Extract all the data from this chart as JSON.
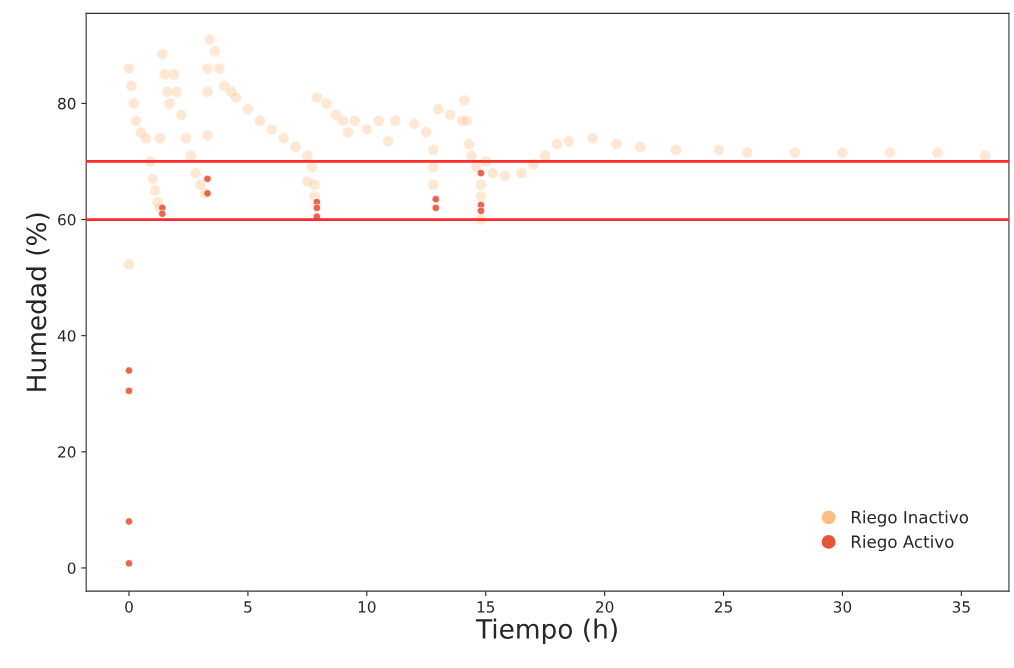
{
  "chart_data": {
    "type": "scatter",
    "xlabel": "Tiempo (h)",
    "ylabel": "Humedad (%)",
    "xlim": [
      -1.8,
      37
    ],
    "ylim": [
      -4,
      95.5
    ],
    "xticks": [
      0,
      5,
      10,
      15,
      20,
      25,
      30,
      35
    ],
    "yticks": [
      0,
      20,
      40,
      60,
      80
    ],
    "grid": false,
    "legend": "bottom right",
    "marker": "circle",
    "series": [
      {
        "name": "Riego Inactivo",
        "color": "#fdbe85",
        "x": [
          0,
          0.1,
          0.2,
          0.3,
          0.5,
          0.7,
          0.9,
          1.0,
          1.1,
          1.2,
          1.3,
          0,
          1.3,
          1.4,
          1.5,
          1.6,
          1.7,
          1.9,
          2.0,
          2.2,
          2.4,
          2.6,
          2.8,
          3.0,
          3.2,
          3.3,
          3.3,
          3.3,
          3.4,
          3.6,
          3.8,
          4.0,
          4.3,
          4.5,
          5,
          5.5,
          6,
          6.5,
          7,
          7.5,
          7.7,
          7.5,
          7.8,
          7.8,
          7.9,
          8.3,
          8.7,
          9.0,
          9.2,
          9.5,
          10,
          10.5,
          10.9,
          11.2,
          12,
          12.5,
          12.8,
          12.8,
          12.8,
          13.0,
          13.5,
          14.0,
          14.1,
          14.2,
          14.3,
          14.4,
          14.6,
          14.8,
          14.8,
          14.8,
          15.0,
          15.3,
          15.8,
          16.5,
          17,
          17.5,
          18,
          18.5,
          19.5,
          20.5,
          21.5,
          23,
          24.8,
          26,
          28,
          30,
          32,
          34,
          36
        ],
        "values": [
          86,
          83,
          80,
          77,
          75,
          74,
          70,
          67,
          65,
          63,
          62,
          52.3,
          74,
          88.5,
          85,
          82,
          80,
          85,
          82,
          78,
          74,
          71,
          68,
          66,
          64.5,
          82,
          74.5,
          86,
          91,
          89,
          86,
          83,
          82,
          81,
          79,
          77,
          75.5,
          74,
          72.5,
          71,
          69,
          66.5,
          66,
          64,
          81,
          80,
          78,
          77,
          75,
          77,
          75.5,
          77,
          73.5,
          77,
          76.5,
          75,
          72,
          69,
          66,
          79,
          78,
          77,
          80.5,
          77,
          73,
          71,
          69,
          66,
          64,
          60,
          70,
          68,
          67.5,
          68,
          69.5,
          71,
          73,
          73.5,
          74,
          73,
          72.5,
          72,
          72,
          71.5,
          71.5,
          71.5,
          71.5,
          71.5,
          71
        ]
      },
      {
        "name": "Riego Activo",
        "color": "#e6553a",
        "x": [
          0,
          0,
          0,
          0,
          1.4,
          1.4,
          3.3,
          3.3,
          7.9,
          7.9,
          7.9,
          12.9,
          12.9,
          14.8,
          14.8,
          14.8
        ],
        "values": [
          34,
          30.5,
          8,
          0.8,
          62,
          61,
          67,
          64.5,
          63,
          62,
          60.5,
          63.5,
          62,
          68,
          62.5,
          61.5
        ]
      }
    ],
    "ref_lines": [
      {
        "axis": "y",
        "value": 70,
        "color": "#ff2a2a",
        "line_style": "solid"
      },
      {
        "axis": "y",
        "value": 60,
        "color": "#ff2a2a",
        "line_style": "solid"
      }
    ]
  }
}
